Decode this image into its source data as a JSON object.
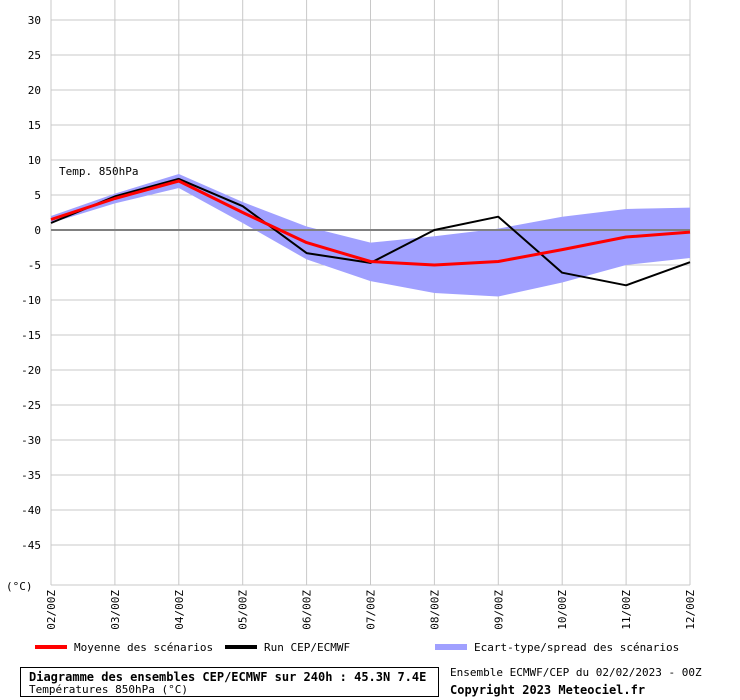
{
  "chart_data": {
    "type": "line",
    "ylabel": "(°C)",
    "ylim": [
      -50,
      30
    ],
    "yticks": [
      30,
      25,
      20,
      15,
      10,
      5,
      0,
      -5,
      -10,
      -15,
      -20,
      -25,
      -30,
      -35,
      -40,
      -45
    ],
    "categories": [
      "02/00Z",
      "03/00Z",
      "04/00Z",
      "05/00Z",
      "06/00Z",
      "07/00Z",
      "08/00Z",
      "09/00Z",
      "10/00Z",
      "11/00Z",
      "12/00Z"
    ],
    "annotation": "Temp. 850hPa",
    "grid": true,
    "series": [
      {
        "name": "Moyenne des scénarios",
        "color": "#ff0000",
        "values": [
          1.5,
          4.5,
          7.0,
          2.5,
          -1.8,
          -4.5,
          -5.0,
          -4.5,
          -2.8,
          -1.0,
          -0.3
        ]
      },
      {
        "name": "Run CEP/ECMWF",
        "color": "#000000",
        "values": [
          1.0,
          4.8,
          7.3,
          3.4,
          -3.3,
          -4.7,
          0.0,
          1.9,
          -6.1,
          -7.9,
          -4.6
        ]
      }
    ],
    "band": {
      "name": "Ecart-type/spread des scénarios",
      "color": "#a0a0ff",
      "upper": [
        2.0,
        5.2,
        8.0,
        4.0,
        0.5,
        -1.8,
        -0.9,
        0.2,
        1.9,
        3.0,
        3.2
      ],
      "lower": [
        1.0,
        3.8,
        6.0,
        1.0,
        -4.2,
        -7.3,
        -9.0,
        -9.5,
        -7.5,
        -5.0,
        -4.0
      ]
    }
  },
  "legend": {
    "mean_label": "Moyenne des scénarios",
    "run_label": "Run CEP/ECMWF",
    "spread_label": "Ecart-type/spread des scénarios"
  },
  "footer": {
    "title": "Diagramme des ensembles CEP/ECMWF sur 240h : 45.3N 7.4E",
    "subtitle": "Températures 850hPa (°C)",
    "ensemble": "Ensemble ECMWF/CEP du 02/02/2023 - 00Z",
    "copyright": "Copyright 2023 Meteociel.fr"
  }
}
